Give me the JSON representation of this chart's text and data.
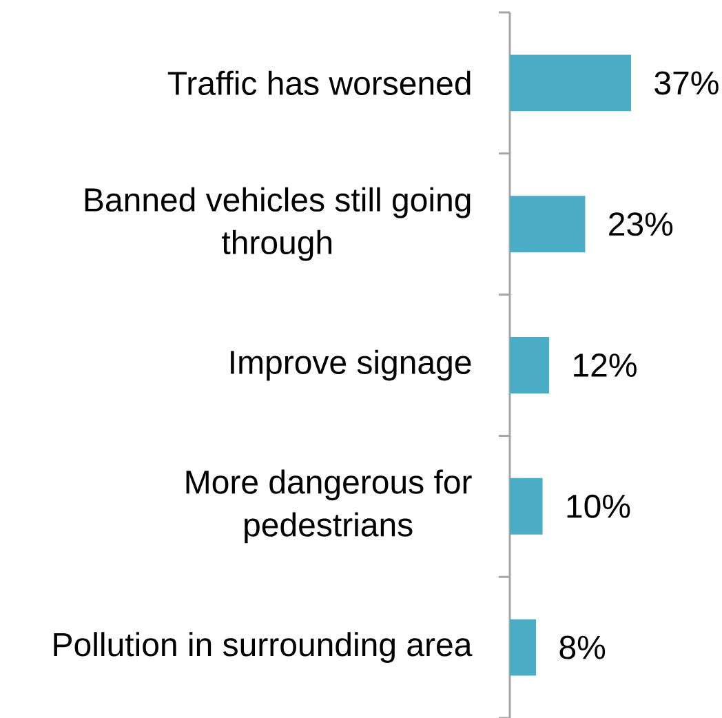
{
  "chart_data": {
    "type": "bar",
    "orientation": "horizontal",
    "categories": [
      "Traffic has worsened",
      "Banned vehicles still going through",
      "Improve signage",
      "More dangerous for pedestrians",
      "Pollution in surrounding area"
    ],
    "values": [
      37,
      23,
      12,
      10,
      8
    ],
    "value_labels": [
      "37%",
      "23%",
      "12%",
      "10%",
      "8%"
    ],
    "color": "#4bacc6"
  }
}
